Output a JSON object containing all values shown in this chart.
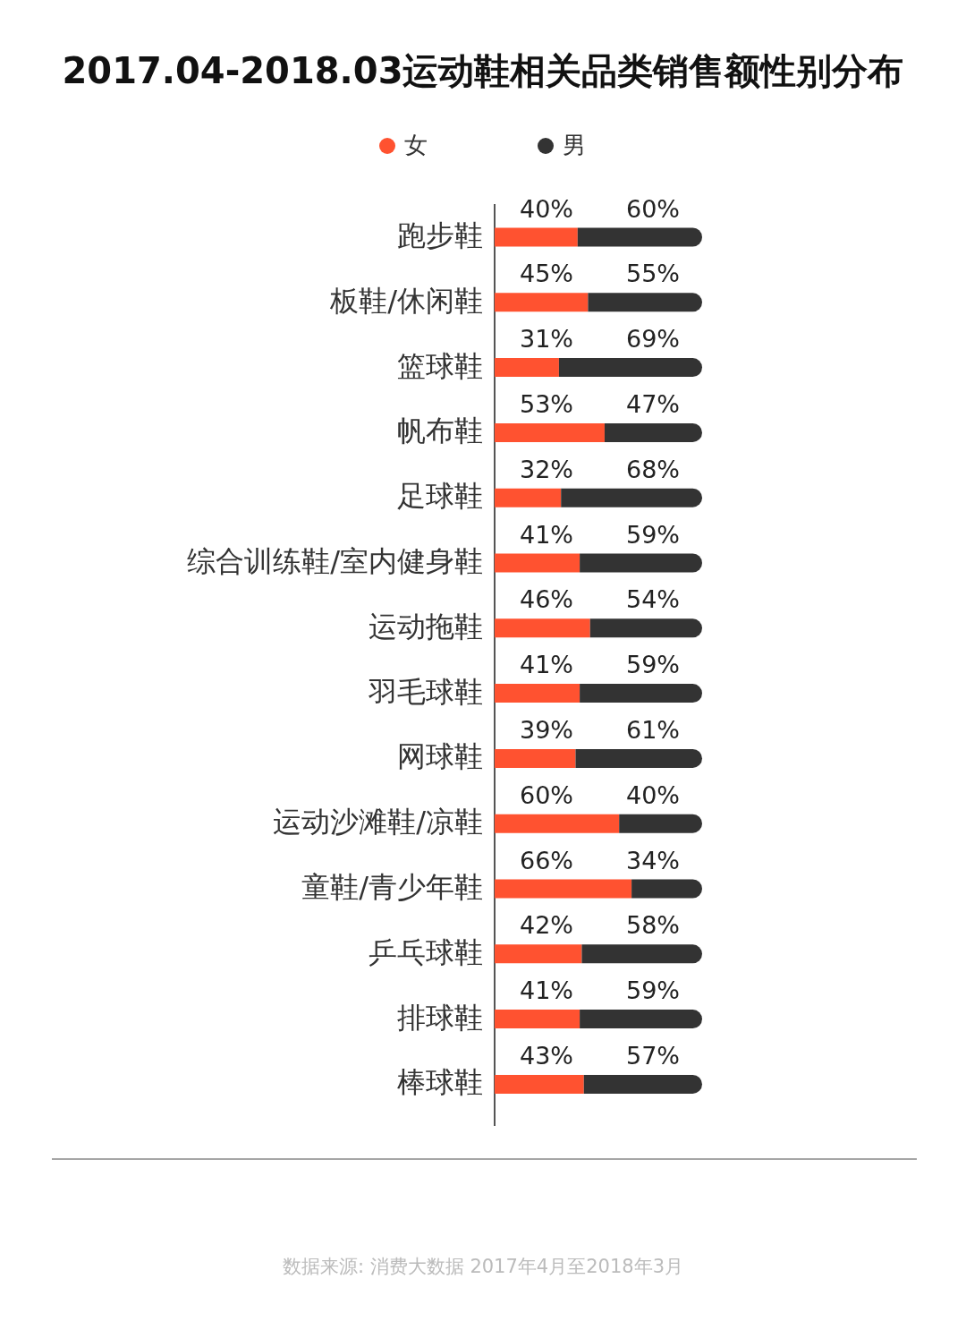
{
  "chart_data": {
    "type": "bar",
    "orientation": "horizontal",
    "stacked": true,
    "title": "2017.04-2018.03运动鞋相关品类销售额性别分布",
    "categories": [
      "跑步鞋",
      "板鞋/休闲鞋",
      "篮球鞋",
      "帆布鞋",
      "足球鞋",
      "综合训练鞋/室内健身鞋",
      "运动拖鞋",
      "羽毛球鞋",
      "网球鞋",
      "运动沙滩鞋/凉鞋",
      "童鞋/青少年鞋",
      "乒乓球鞋",
      "排球鞋",
      "棒球鞋"
    ],
    "series": [
      {
        "name": "女",
        "color": "#ff5230",
        "values": [
          40,
          45,
          31,
          53,
          32,
          41,
          46,
          41,
          39,
          60,
          66,
          42,
          41,
          43
        ],
        "value_labels": [
          "40%",
          "45%",
          "31%",
          "53%",
          "32%",
          "41%",
          "46%",
          "41%",
          "39%",
          "60%",
          "66%",
          "42%",
          "41%",
          "43%"
        ]
      },
      {
        "name": "男",
        "color": "#333333",
        "values": [
          60,
          55,
          69,
          47,
          68,
          59,
          54,
          59,
          61,
          40,
          34,
          58,
          59,
          57
        ],
        "value_labels": [
          "60%",
          "55%",
          "69%",
          "47%",
          "68%",
          "59%",
          "54%",
          "59%",
          "61%",
          "40%",
          "34%",
          "58%",
          "59%",
          "57%"
        ]
      }
    ],
    "xlim": [
      0,
      100
    ],
    "legend": "top",
    "annotations": [
      "数据来源: 消费大数据  2017年4月至2018年3月"
    ]
  }
}
